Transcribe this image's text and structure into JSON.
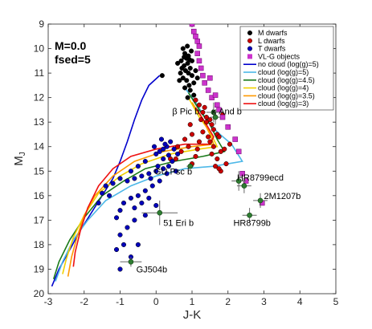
{
  "chart_data": {
    "type": "scatter",
    "xlabel": "J-K",
    "ylabel": "M_J",
    "xlim": [
      -3,
      5
    ],
    "ylim": [
      20,
      9
    ],
    "y_inverted": true,
    "x_ticks": [
      -3,
      -2,
      -1,
      0,
      1,
      2,
      3,
      4,
      5
    ],
    "y_ticks": [
      9,
      10,
      11,
      12,
      13,
      14,
      15,
      16,
      17,
      18,
      19,
      20
    ],
    "annotations_top_left": [
      "M=0.0",
      "fsed=5"
    ],
    "legend_position": "top-right",
    "colors": {
      "m_dwarfs": "#000000",
      "l_dwarfs": "#cc0000",
      "t_dwarfs": "#0000bb",
      "vlg": "#cc33cc",
      "companions": "#2e7d32",
      "no_cloud": "#0000cc",
      "cloud5": "#4db8e8",
      "cloud45": "#1a7a1a",
      "cloud4": "#f0d000",
      "cloud35": "#ff9900",
      "cloud3": "#ee1111"
    },
    "scatter_series": [
      {
        "name": "M dwarfs",
        "marker": "circle",
        "color_key": "m_dwarfs",
        "points": [
          [
            0.75,
            10.0
          ],
          [
            0.8,
            10.2
          ],
          [
            0.85,
            10.4
          ],
          [
            0.9,
            10.3
          ],
          [
            0.7,
            10.5
          ],
          [
            0.78,
            10.7
          ],
          [
            0.88,
            10.6
          ],
          [
            0.95,
            10.8
          ],
          [
            0.82,
            10.9
          ],
          [
            0.9,
            11.0
          ],
          [
            0.75,
            11.2
          ],
          [
            0.85,
            11.3
          ],
          [
            1.0,
            11.1
          ],
          [
            0.92,
            11.5
          ],
          [
            0.8,
            11.6
          ],
          [
            1.05,
            11.4
          ],
          [
            1.1,
            10.9
          ],
          [
            0.98,
            10.1
          ],
          [
            0.87,
            9.9
          ],
          [
            0.72,
            10.8
          ],
          [
            0.68,
            11.0
          ],
          [
            0.95,
            11.7
          ],
          [
            1.05,
            11.9
          ],
          [
            0.88,
            12.0
          ],
          [
            1.15,
            11.2
          ],
          [
            0.6,
            10.6
          ],
          [
            0.65,
            11.3
          ],
          [
            1.0,
            10.5
          ],
          [
            0.78,
            10.35
          ],
          [
            0.93,
            10.45
          ],
          [
            0.17,
            11.1
          ]
        ]
      },
      {
        "name": "L dwarfs",
        "marker": "circle",
        "color_key": "l_dwarfs",
        "points": [
          [
            1.1,
            12.1
          ],
          [
            1.2,
            12.3
          ],
          [
            1.3,
            12.6
          ],
          [
            1.4,
            12.8
          ],
          [
            1.5,
            12.9
          ],
          [
            1.55,
            13.1
          ],
          [
            1.6,
            13.3
          ],
          [
            1.7,
            13.5
          ],
          [
            1.75,
            13.6
          ],
          [
            1.5,
            13.8
          ],
          [
            1.6,
            14.0
          ],
          [
            1.8,
            14.2
          ],
          [
            1.9,
            14.1
          ],
          [
            1.7,
            14.5
          ],
          [
            1.65,
            14.8
          ],
          [
            1.8,
            15.0
          ],
          [
            1.4,
            13.0
          ],
          [
            1.3,
            13.4
          ],
          [
            1.2,
            13.8
          ],
          [
            1.0,
            13.5
          ],
          [
            0.9,
            14.0
          ],
          [
            1.1,
            14.4
          ],
          [
            1.85,
            12.7
          ],
          [
            2.0,
            13.2
          ],
          [
            2.05,
            13.9
          ],
          [
            1.95,
            14.7
          ],
          [
            1.35,
            12.4
          ],
          [
            1.25,
            12.9
          ],
          [
            1.45,
            13.6
          ],
          [
            1.15,
            14.1
          ],
          [
            1.55,
            14.3
          ],
          [
            1.75,
            14.9
          ],
          [
            0.95,
            13.1
          ],
          [
            0.8,
            13.7
          ],
          [
            0.7,
            14.2
          ],
          [
            1.0,
            14.7
          ],
          [
            0.55,
            14.5
          ],
          [
            0.6,
            14.0
          ],
          [
            0.4,
            14.5
          ]
        ]
      },
      {
        "name": "T dwarfs",
        "marker": "circle",
        "color_key": "t_dwarfs",
        "points": [
          [
            0.4,
            13.8
          ],
          [
            0.3,
            14.0
          ],
          [
            0.2,
            14.1
          ],
          [
            0.1,
            14.2
          ],
          [
            0.0,
            14.3
          ],
          [
            0.5,
            14.1
          ],
          [
            0.6,
            14.3
          ],
          [
            0.45,
            14.6
          ],
          [
            0.35,
            14.8
          ],
          [
            0.2,
            14.9
          ],
          [
            0.0,
            15.0
          ],
          [
            -0.2,
            15.1
          ],
          [
            -0.4,
            15.2
          ],
          [
            -0.6,
            15.3
          ],
          [
            -0.8,
            15.4
          ],
          [
            -1.0,
            15.3
          ],
          [
            -1.2,
            15.5
          ],
          [
            -1.4,
            15.6
          ],
          [
            -0.3,
            14.6
          ],
          [
            -0.5,
            14.8
          ],
          [
            -0.7,
            15.0
          ],
          [
            0.1,
            15.4
          ],
          [
            -0.1,
            15.6
          ],
          [
            -0.3,
            15.8
          ],
          [
            -0.5,
            16.0
          ],
          [
            -0.7,
            16.1
          ],
          [
            -0.9,
            16.3
          ],
          [
            -1.0,
            16.6
          ],
          [
            -1.1,
            16.9
          ],
          [
            -0.6,
            16.5
          ],
          [
            -0.4,
            16.3
          ],
          [
            -0.2,
            16.1
          ],
          [
            0.0,
            16.4
          ],
          [
            -0.3,
            16.8
          ],
          [
            -0.6,
            17.0
          ],
          [
            -0.8,
            17.3
          ],
          [
            -1.0,
            17.6
          ],
          [
            -0.9,
            18.0
          ],
          [
            -1.1,
            18.2
          ],
          [
            -0.7,
            18.5
          ],
          [
            -1.0,
            19.0
          ],
          [
            -0.5,
            18.0
          ],
          [
            -1.5,
            15.9
          ],
          [
            -1.6,
            16.3
          ],
          [
            -1.3,
            16.0
          ],
          [
            0.2,
            14.5
          ],
          [
            0.3,
            15.1
          ],
          [
            0.55,
            15.0
          ],
          [
            -0.15,
            15.3
          ],
          [
            0.05,
            14.8
          ],
          [
            0.25,
            13.9
          ],
          [
            0.15,
            13.7
          ],
          [
            -0.05,
            14.0
          ],
          [
            0.35,
            14.35
          ]
        ]
      },
      {
        "name": "VL-G objects",
        "marker": "square",
        "color_key": "vlg",
        "points": [
          [
            1.0,
            9.0
          ],
          [
            1.05,
            9.3
          ],
          [
            1.1,
            9.5
          ],
          [
            1.15,
            9.7
          ],
          [
            1.2,
            9.9
          ],
          [
            1.15,
            10.2
          ],
          [
            1.2,
            10.5
          ],
          [
            1.25,
            10.8
          ],
          [
            1.3,
            11.1
          ],
          [
            1.35,
            11.4
          ],
          [
            1.45,
            11.7
          ],
          [
            1.55,
            12.0
          ],
          [
            1.7,
            12.3
          ],
          [
            1.75,
            12.5
          ],
          [
            1.85,
            12.8
          ],
          [
            2.0,
            13.2
          ],
          [
            2.2,
            13.7
          ],
          [
            2.3,
            14.2
          ],
          [
            2.4,
            15.1
          ],
          [
            2.5,
            15.4
          ],
          [
            2.95,
            16.3
          ],
          [
            1.5,
            11.2
          ],
          [
            1.65,
            11.9
          ]
        ]
      }
    ],
    "model_series": [
      {
        "name": "no cloud (log(g)=5)",
        "color_key": "no_cloud",
        "points": [
          [
            0.1,
            11.1
          ],
          [
            -0.2,
            11.5
          ],
          [
            -0.4,
            12.1
          ],
          [
            -0.6,
            12.9
          ],
          [
            -0.8,
            13.8
          ],
          [
            -1.0,
            14.6
          ],
          [
            -1.2,
            15.3
          ],
          [
            -1.5,
            16.0
          ],
          [
            -1.8,
            16.7
          ],
          [
            -2.1,
            17.4
          ],
          [
            -2.4,
            18.2
          ],
          [
            -2.7,
            19.0
          ],
          [
            -2.9,
            19.7
          ]
        ]
      },
      {
        "name": "cloud (log(g)=5)",
        "color_key": "cloud5",
        "points": [
          [
            0.8,
            11.6
          ],
          [
            1.1,
            12.2
          ],
          [
            1.4,
            12.9
          ],
          [
            1.7,
            13.4
          ],
          [
            2.1,
            13.9
          ],
          [
            2.4,
            14.6
          ],
          [
            1.6,
            14.8
          ],
          [
            0.8,
            14.9
          ],
          [
            0.0,
            15.2
          ],
          [
            -0.7,
            15.6
          ],
          [
            -1.4,
            16.2
          ],
          [
            -1.9,
            17.0
          ],
          [
            -2.3,
            17.8
          ],
          [
            -2.6,
            18.7
          ],
          [
            -2.8,
            19.5
          ]
        ]
      },
      {
        "name": "cloud (log(g)=4.5)",
        "color_key": "cloud45",
        "points": [
          [
            0.9,
            11.8
          ],
          [
            1.2,
            12.5
          ],
          [
            1.5,
            13.1
          ],
          [
            1.7,
            13.7
          ],
          [
            1.9,
            14.2
          ],
          [
            1.3,
            14.4
          ],
          [
            0.5,
            14.6
          ],
          [
            -0.3,
            14.9
          ],
          [
            -0.9,
            15.4
          ],
          [
            -1.5,
            16.0
          ],
          [
            -2.0,
            16.9
          ],
          [
            -2.4,
            17.8
          ],
          [
            -2.7,
            18.7
          ],
          [
            -2.85,
            19.4
          ]
        ]
      },
      {
        "name": "cloud (log(g)=4)",
        "color_key": "cloud4",
        "points": [
          [
            0.9,
            12.0
          ],
          [
            1.2,
            12.8
          ],
          [
            1.5,
            13.4
          ],
          [
            1.7,
            14.0
          ],
          [
            1.2,
            14.1
          ],
          [
            0.4,
            14.3
          ],
          [
            -0.4,
            14.7
          ],
          [
            -1.0,
            15.2
          ],
          [
            -1.6,
            15.9
          ],
          [
            -2.0,
            16.8
          ],
          [
            -2.3,
            17.7
          ],
          [
            -2.5,
            18.6
          ],
          [
            -2.6,
            19.2
          ]
        ]
      },
      {
        "name": "cloud (log(g)=3.5)",
        "color_key": "cloud35",
        "points": [
          [
            1.0,
            12.2
          ],
          [
            1.3,
            12.9
          ],
          [
            1.5,
            13.5
          ],
          [
            1.6,
            13.9
          ],
          [
            1.0,
            14.0
          ],
          [
            0.2,
            14.2
          ],
          [
            -0.6,
            14.6
          ],
          [
            -1.2,
            15.2
          ],
          [
            -1.7,
            16.0
          ],
          [
            -2.0,
            16.8
          ],
          [
            -2.2,
            17.7
          ],
          [
            -2.35,
            18.5
          ],
          [
            -2.45,
            19.3
          ]
        ]
      },
      {
        "name": "cloud (log(g)=3)",
        "color_key": "cloud3",
        "points": [
          [
            1.1,
            12.4
          ],
          [
            1.4,
            13.1
          ],
          [
            1.6,
            13.6
          ],
          [
            1.5,
            13.9
          ],
          [
            0.8,
            13.9
          ],
          [
            0.0,
            14.1
          ],
          [
            -0.7,
            14.4
          ],
          [
            -1.2,
            14.9
          ],
          [
            -1.6,
            15.6
          ],
          [
            -1.9,
            16.5
          ],
          [
            -2.1,
            17.4
          ],
          [
            -2.25,
            18.3
          ],
          [
            -2.3,
            18.9
          ]
        ]
      }
    ],
    "companions": [
      {
        "label": "β Pic b",
        "x": 1.6,
        "y": 12.6,
        "xerr": 0.2,
        "yerr": 0.4,
        "label_x": 0.45,
        "label_y": 12.55
      },
      {
        "label": "κ And b",
        "x": 1.65,
        "y": 12.8,
        "xerr": 0.15,
        "yerr": 0.3,
        "label_x": 1.55,
        "label_y": 12.55
      },
      {
        "label": "GU Psc b",
        "x": 0.95,
        "y": 14.8,
        "xerr": 0.1,
        "yerr": 0.1,
        "label_x": -0.05,
        "label_y": 15.0
      },
      {
        "label": "51 Eri b",
        "x": 0.1,
        "y": 16.7,
        "xerr": 0.5,
        "yerr": 0.5,
        "label_x": 0.2,
        "label_y": 17.1
      },
      {
        "label": "HR8799ecd",
        "x": 2.3,
        "y": 15.4,
        "xerr": 0.2,
        "yerr": 0.4,
        "label_x": 2.25,
        "label_y": 15.25
      },
      {
        "label": "",
        "x": 2.45,
        "y": 15.6,
        "xerr": 0.2,
        "yerr": 0.3,
        "label_x": 0,
        "label_y": 0
      },
      {
        "label": "2M1207b",
        "x": 2.9,
        "y": 16.2,
        "xerr": 0.2,
        "yerr": 0.3,
        "label_x": 3.0,
        "label_y": 16.0
      },
      {
        "label": "HR8799b",
        "x": 2.6,
        "y": 16.8,
        "xerr": 0.2,
        "yerr": 0.3,
        "label_x": 2.15,
        "label_y": 17.1
      },
      {
        "label": "GJ504b",
        "x": -0.7,
        "y": 18.7,
        "xerr": 0.3,
        "yerr": 0.2,
        "label_x": -0.55,
        "label_y": 19.0
      }
    ]
  }
}
